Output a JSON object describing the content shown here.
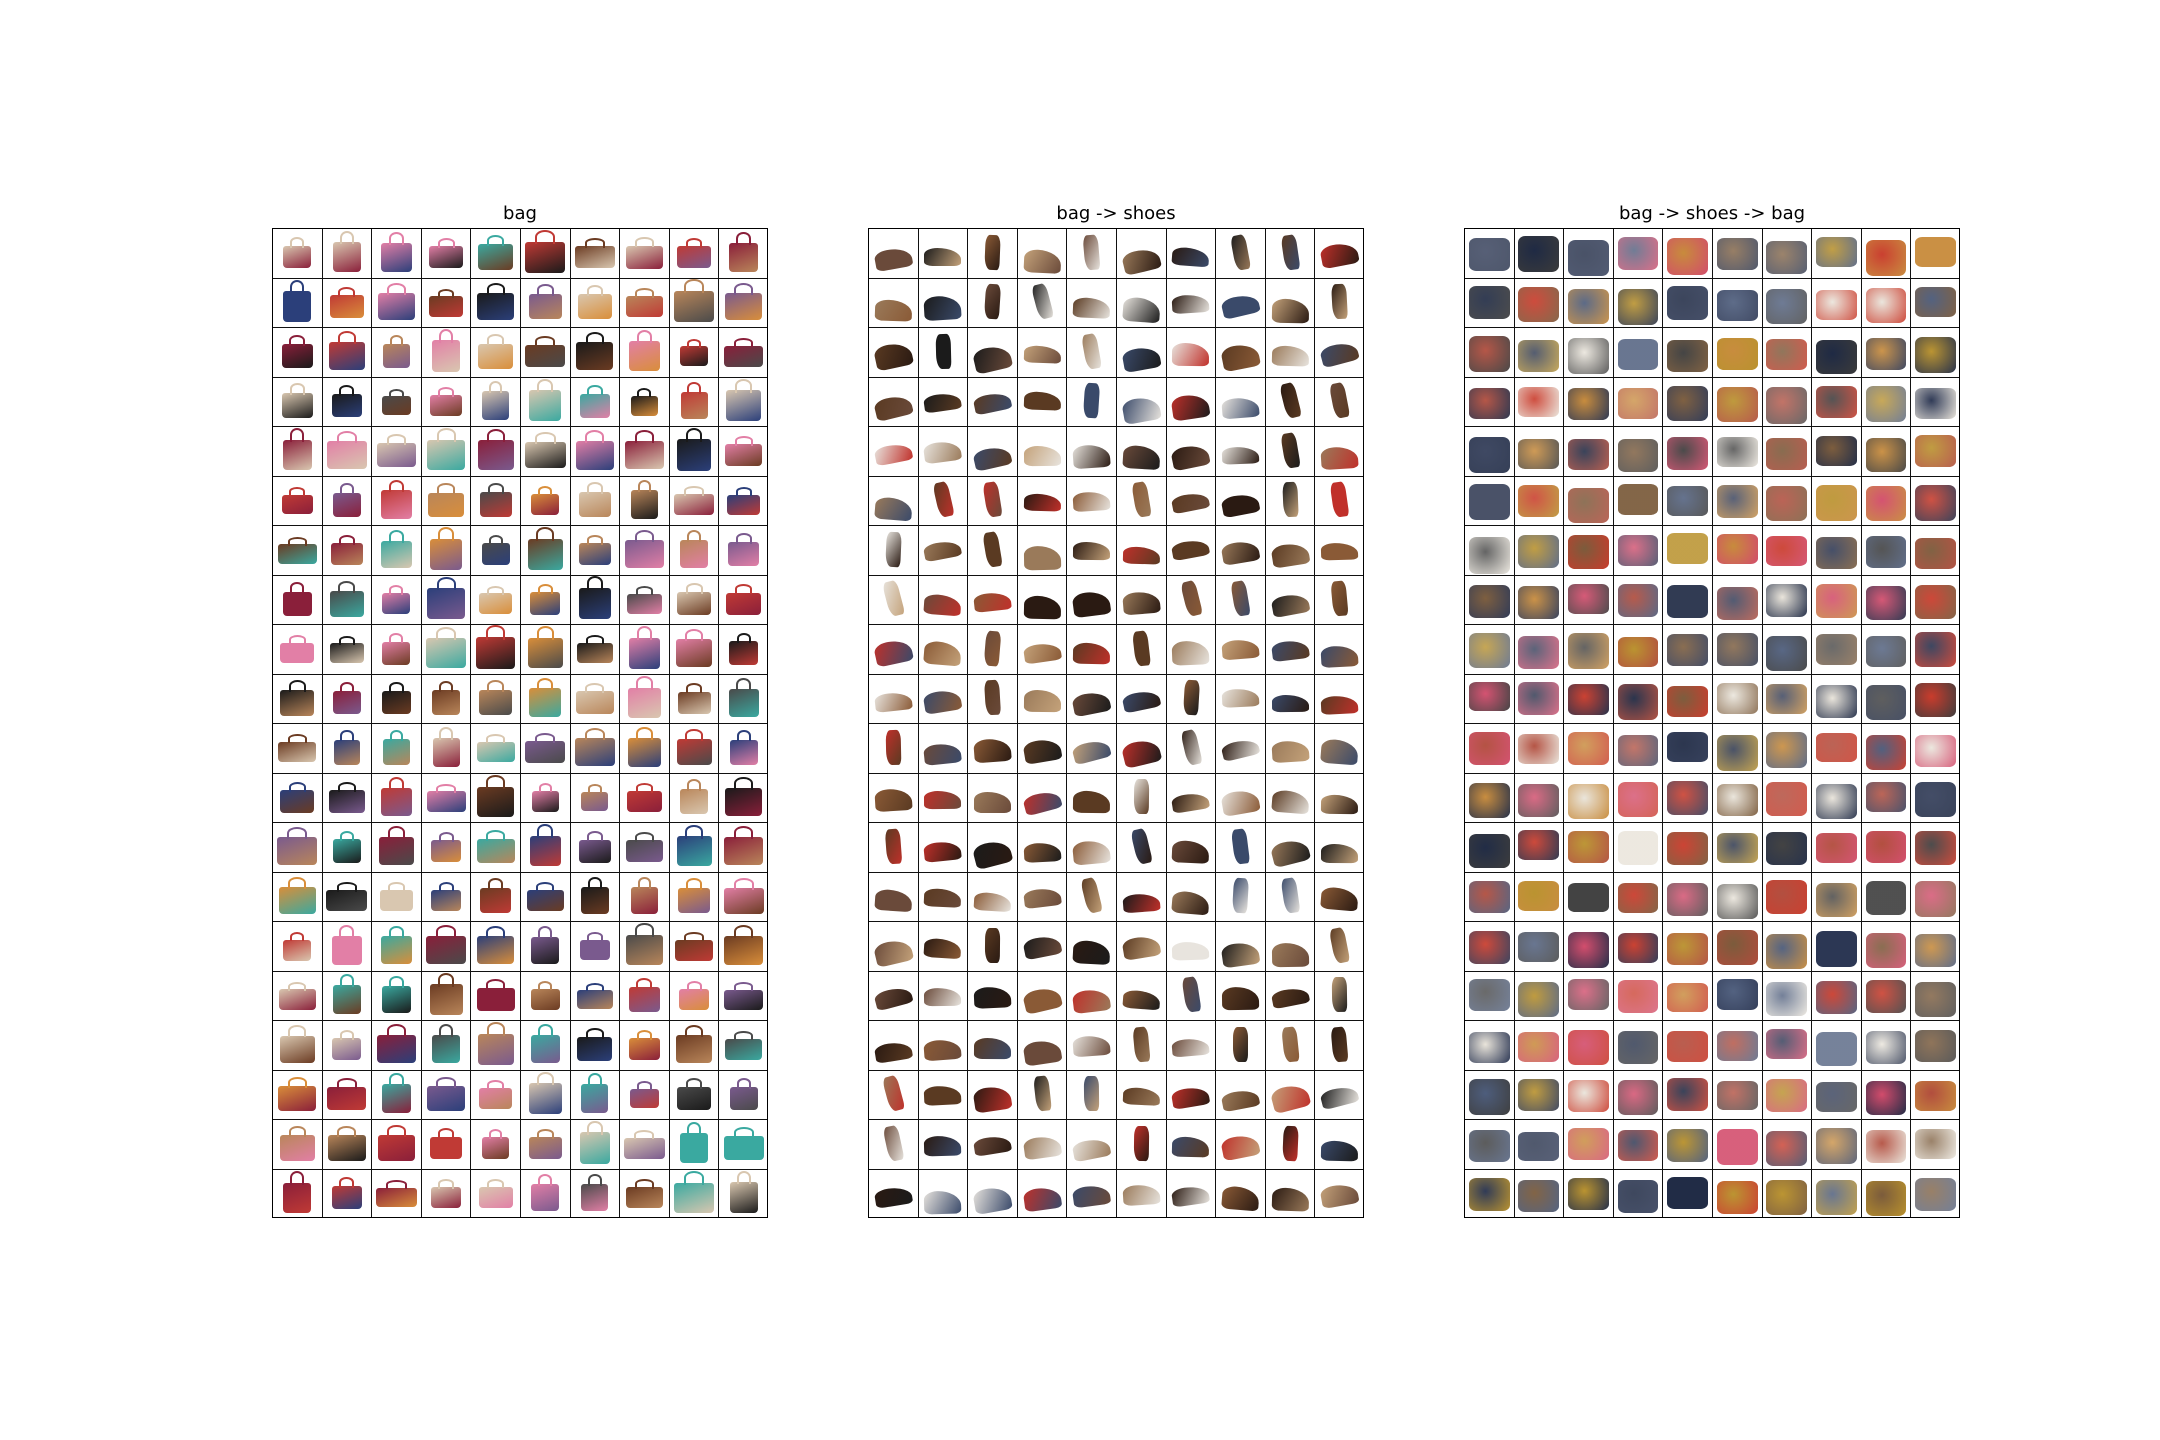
{
  "figure": {
    "panels": [
      {
        "id": "bag",
        "title": "bag",
        "kind": "bag",
        "palette": [
          "#1a1a1a",
          "#6b3b22",
          "#c03a35",
          "#b9865a",
          "#2b3f7a",
          "#d9c7b0",
          "#8a1f3a",
          "#e27fa6",
          "#3aa9a0",
          "#4a4a4a",
          "#d98e3a",
          "#7a5a8e"
        ]
      },
      {
        "id": "bag-to-shoes",
        "title": "bag -> shoes",
        "kind": "shoe",
        "palette": [
          "#2a1a12",
          "#5a3a22",
          "#1b1b1b",
          "#8a5a36",
          "#c4a27a",
          "#3a4a6a",
          "#c0302a",
          "#e8e4de",
          "#6a4a3a",
          "#9a7a5a"
        ]
      },
      {
        "id": "bag-to-shoes-to-bag",
        "title": "bag -> shoes -> bag",
        "kind": "blob",
        "palette": [
          "#1f2a44",
          "#2a3552",
          "#b8902a",
          "#c93a2a",
          "#e9e4da",
          "#3b3b3b",
          "#c78a3a",
          "#b04a3a",
          "#4a5a7a",
          "#d24a6a",
          "#7a5a3a"
        ]
      }
    ],
    "grid": {
      "rows": 20,
      "cols": 10
    }
  }
}
